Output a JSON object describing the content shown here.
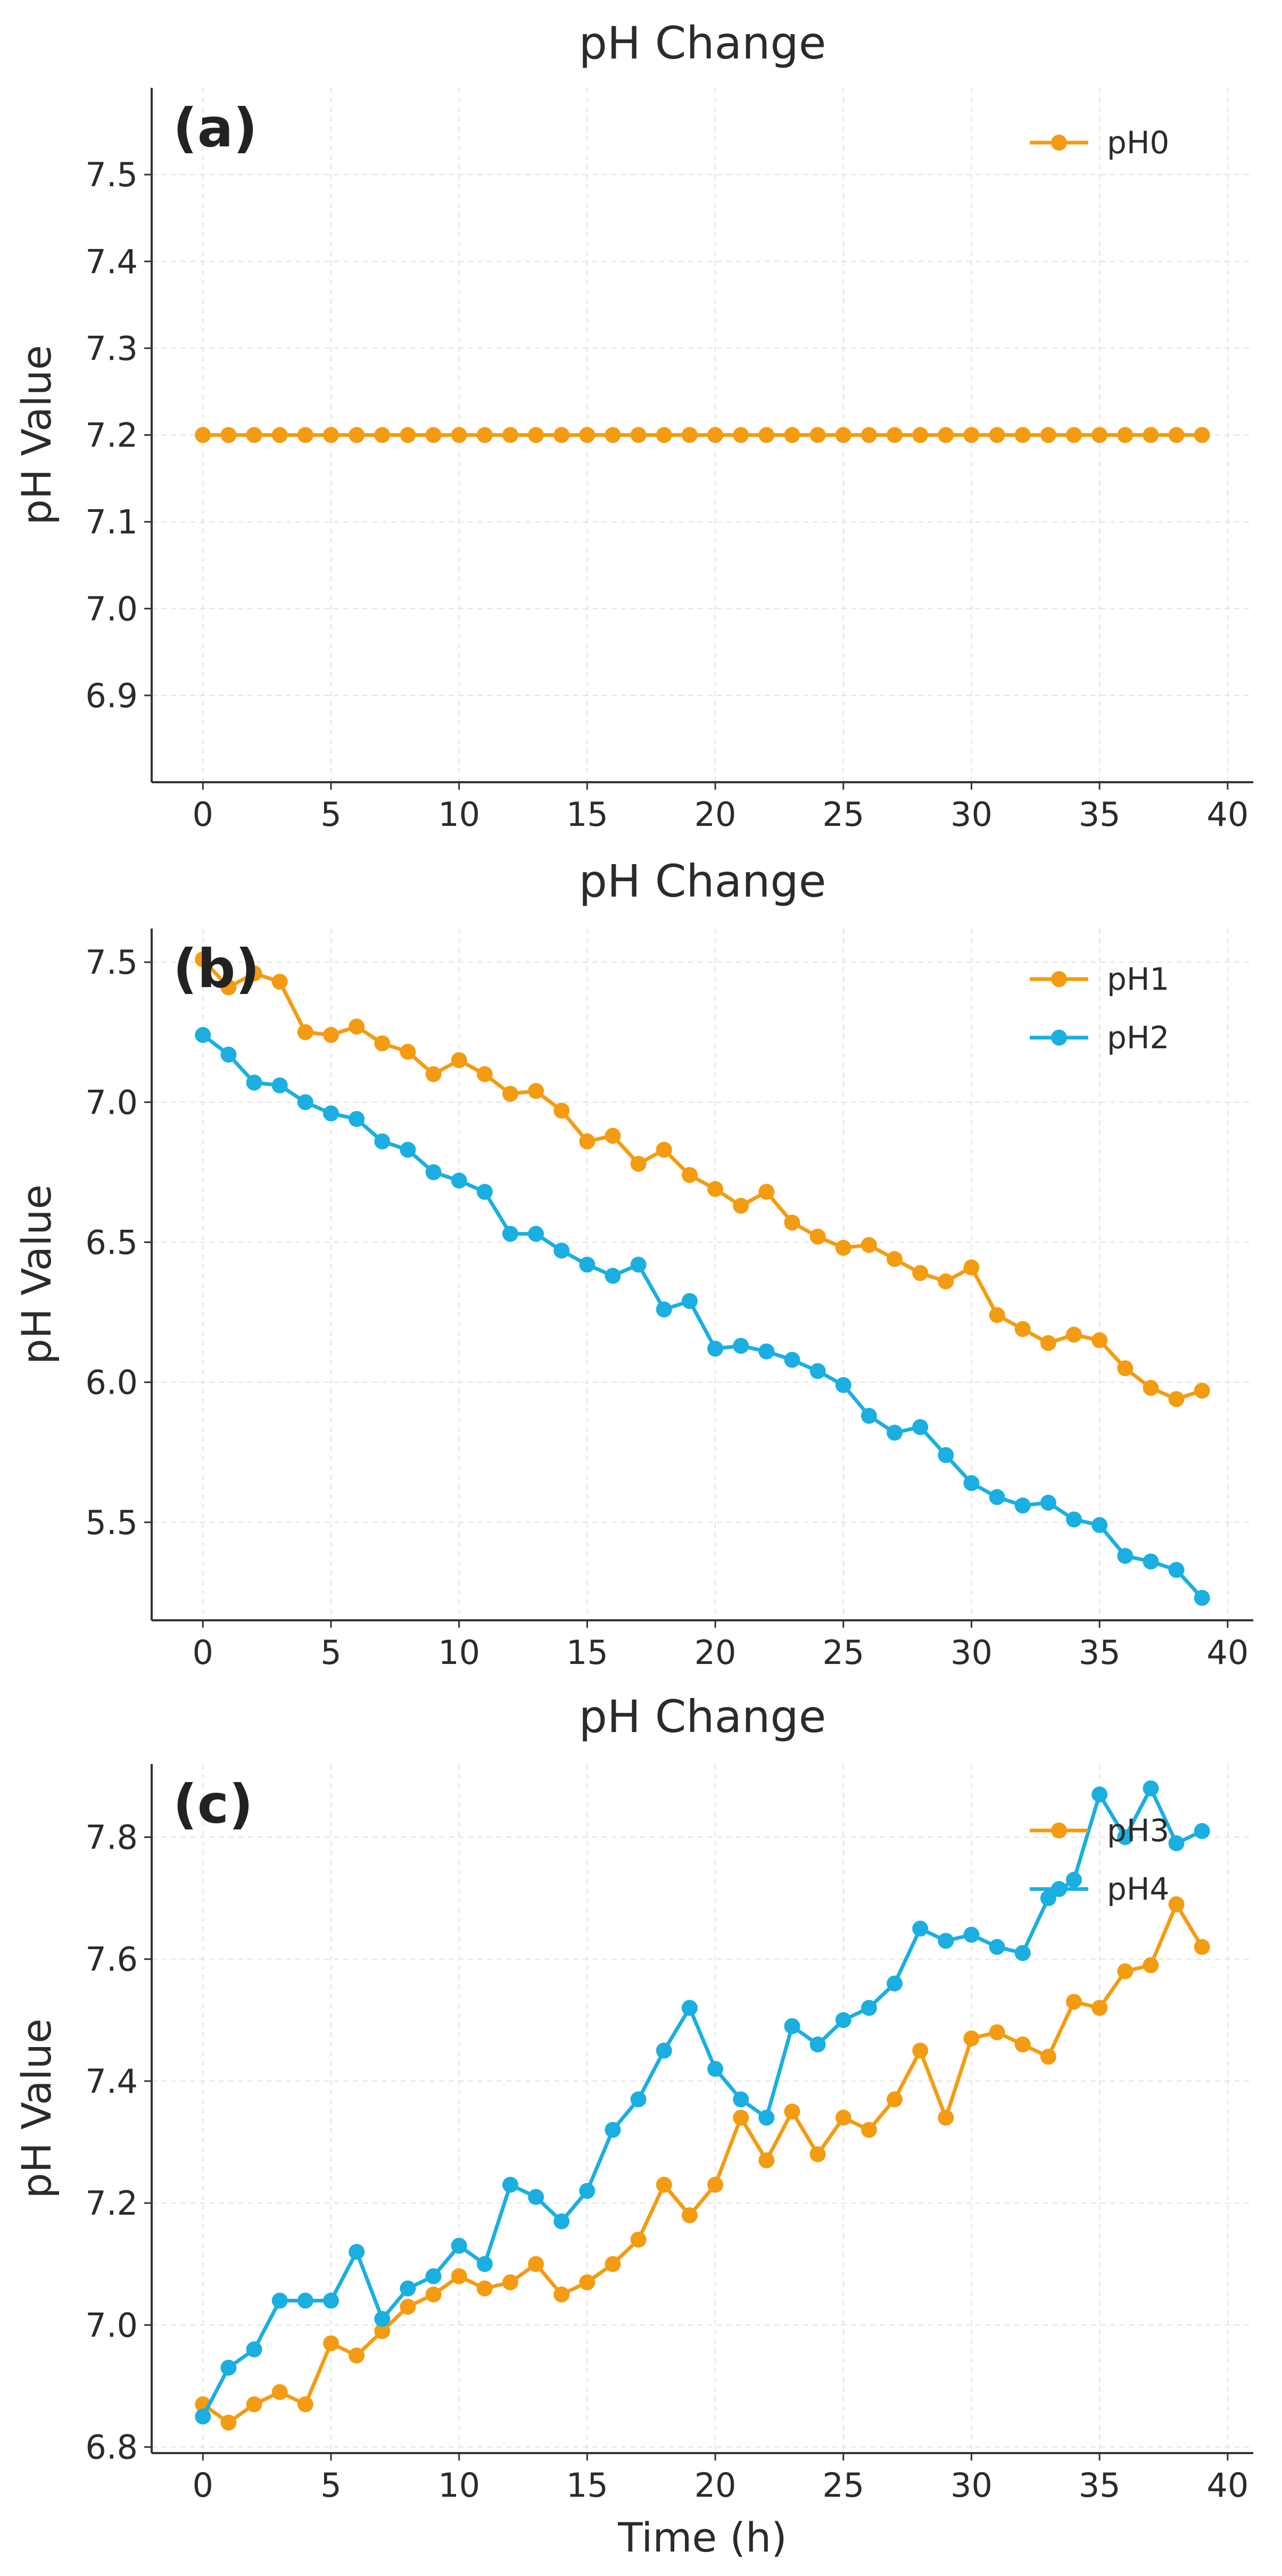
{
  "chart_data": [
    {
      "type": "line",
      "panel_label": "(a)",
      "title": "pH Change",
      "xlabel": "",
      "ylabel": "pH Value",
      "xlim": [
        -2,
        41
      ],
      "ylim": [
        6.8,
        7.6
      ],
      "xticks": [
        0,
        5,
        10,
        15,
        20,
        25,
        30,
        35,
        40
      ],
      "yticks": [
        6.9,
        7.0,
        7.1,
        7.2,
        7.3,
        7.4,
        7.5
      ],
      "ytick_decimals": 1,
      "grid": true,
      "legend_position": "top-right",
      "x": [
        0,
        1,
        2,
        3,
        4,
        5,
        6,
        7,
        8,
        9,
        10,
        11,
        12,
        13,
        14,
        15,
        16,
        17,
        18,
        19,
        20,
        21,
        22,
        23,
        24,
        25,
        26,
        27,
        28,
        29,
        30,
        31,
        32,
        33,
        34,
        35,
        36,
        37,
        38,
        39
      ],
      "series": [
        {
          "name": "pH0",
          "color": "#f39c12",
          "values": [
            7.2,
            7.2,
            7.2,
            7.2,
            7.2,
            7.2,
            7.2,
            7.2,
            7.2,
            7.2,
            7.2,
            7.2,
            7.2,
            7.2,
            7.2,
            7.2,
            7.2,
            7.2,
            7.2,
            7.2,
            7.2,
            7.2,
            7.2,
            7.2,
            7.2,
            7.2,
            7.2,
            7.2,
            7.2,
            7.2,
            7.2,
            7.2,
            7.2,
            7.2,
            7.2,
            7.2,
            7.2,
            7.2,
            7.2,
            7.2
          ]
        }
      ]
    },
    {
      "type": "line",
      "panel_label": "(b)",
      "title": "pH Change",
      "xlabel": "",
      "ylabel": "pH Value",
      "xlim": [
        -2,
        41
      ],
      "ylim": [
        5.15,
        7.62
      ],
      "xticks": [
        0,
        5,
        10,
        15,
        20,
        25,
        30,
        35,
        40
      ],
      "yticks": [
        5.5,
        6.0,
        6.5,
        7.0,
        7.5
      ],
      "ytick_decimals": 1,
      "grid": true,
      "legend_position": "top-right",
      "x": [
        0,
        1,
        2,
        3,
        4,
        5,
        6,
        7,
        8,
        9,
        10,
        11,
        12,
        13,
        14,
        15,
        16,
        17,
        18,
        19,
        20,
        21,
        22,
        23,
        24,
        25,
        26,
        27,
        28,
        29,
        30,
        31,
        32,
        33,
        34,
        35,
        36,
        37,
        38,
        39
      ],
      "series": [
        {
          "name": "pH1",
          "color": "#f39c12",
          "values": [
            7.51,
            7.41,
            7.46,
            7.43,
            7.25,
            7.24,
            7.27,
            7.21,
            7.18,
            7.1,
            7.15,
            7.1,
            7.03,
            7.04,
            6.97,
            6.86,
            6.88,
            6.78,
            6.83,
            6.74,
            6.69,
            6.63,
            6.68,
            6.57,
            6.52,
            6.48,
            6.49,
            6.44,
            6.39,
            6.36,
            6.41,
            6.24,
            6.19,
            6.14,
            6.17,
            6.15,
            6.05,
            5.98,
            5.94,
            5.97
          ]
        },
        {
          "name": "pH2",
          "color": "#1aafe0",
          "values": [
            7.24,
            7.17,
            7.07,
            7.06,
            7.0,
            6.96,
            6.94,
            6.86,
            6.83,
            6.75,
            6.72,
            6.68,
            6.53,
            6.53,
            6.47,
            6.42,
            6.38,
            6.42,
            6.26,
            6.29,
            6.12,
            6.13,
            6.11,
            6.08,
            6.04,
            5.99,
            5.88,
            5.82,
            5.84,
            5.74,
            5.64,
            5.59,
            5.56,
            5.57,
            5.51,
            5.49,
            5.38,
            5.36,
            5.33,
            5.23
          ]
        }
      ]
    },
    {
      "type": "line",
      "panel_label": "(c)",
      "title": "pH Change",
      "xlabel": "Time (h)",
      "ylabel": "pH Value",
      "xlim": [
        -2,
        41
      ],
      "ylim": [
        6.79,
        7.92
      ],
      "xticks": [
        0,
        5,
        10,
        15,
        20,
        25,
        30,
        35,
        40
      ],
      "yticks": [
        6.8,
        7.0,
        7.2,
        7.4,
        7.6,
        7.8
      ],
      "ytick_decimals": 1,
      "grid": true,
      "legend_position": "top-right",
      "x": [
        0,
        1,
        2,
        3,
        4,
        5,
        6,
        7,
        8,
        9,
        10,
        11,
        12,
        13,
        14,
        15,
        16,
        17,
        18,
        19,
        20,
        21,
        22,
        23,
        24,
        25,
        26,
        27,
        28,
        29,
        30,
        31,
        32,
        33,
        34,
        35,
        36,
        37,
        38,
        39
      ],
      "series": [
        {
          "name": "pH3",
          "color": "#f39c12",
          "values": [
            6.87,
            6.84,
            6.87,
            6.89,
            6.87,
            6.97,
            6.95,
            6.99,
            7.03,
            7.05,
            7.08,
            7.06,
            7.07,
            7.1,
            7.05,
            7.07,
            7.1,
            7.14,
            7.23,
            7.18,
            7.23,
            7.34,
            7.27,
            7.35,
            7.28,
            7.34,
            7.32,
            7.37,
            7.45,
            7.34,
            7.47,
            7.48,
            7.46,
            7.44,
            7.53,
            7.52,
            7.58,
            7.59,
            7.69,
            7.62
          ]
        },
        {
          "name": "pH4",
          "color": "#1aafe0",
          "values": [
            6.85,
            6.93,
            6.96,
            7.04,
            7.04,
            7.04,
            7.12,
            7.01,
            7.06,
            7.08,
            7.13,
            7.1,
            7.23,
            7.21,
            7.17,
            7.22,
            7.32,
            7.37,
            7.45,
            7.52,
            7.42,
            7.37,
            7.34,
            7.49,
            7.46,
            7.5,
            7.52,
            7.56,
            7.65,
            7.63,
            7.64,
            7.62,
            7.61,
            7.7,
            7.73,
            7.87,
            7.8,
            7.88,
            7.79,
            7.81
          ]
        }
      ]
    }
  ]
}
